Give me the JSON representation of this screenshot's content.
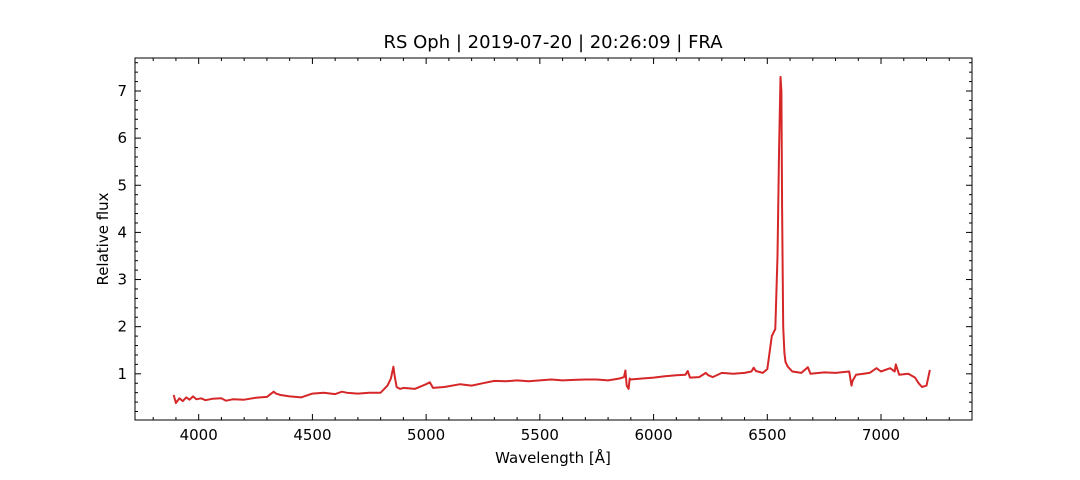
{
  "chart_data": {
    "type": "line",
    "title": "RS Oph | 2019-07-20 | 20:26:09 | FRA",
    "xlabel": "Wavelength [Å]",
    "ylabel": "Relative flux",
    "xlim": [
      3720,
      7400
    ],
    "ylim": [
      0.02,
      7.7
    ],
    "xticks": [
      4000,
      4500,
      5000,
      5500,
      6000,
      6500,
      7000
    ],
    "yticks": [
      1,
      2,
      3,
      4,
      5,
      6,
      7
    ],
    "grid": false,
    "line_color": "#d62728",
    "series": [
      {
        "x": [
          3890,
          3900,
          3915,
          3930,
          3945,
          3960,
          3975,
          3990,
          4010,
          4030,
          4060,
          4100,
          4120,
          4150,
          4200,
          4250,
          4300,
          4330,
          4340,
          4360,
          4400,
          4450,
          4500,
          4550,
          4600,
          4630,
          4650,
          4700,
          4750,
          4800,
          4830,
          4845,
          4856,
          4862,
          4870,
          4885,
          4900,
          4950,
          5000,
          5016,
          5030,
          5080,
          5150,
          5200,
          5250,
          5300,
          5350,
          5400,
          5450,
          5500,
          5550,
          5600,
          5650,
          5700,
          5750,
          5800,
          5850,
          5870,
          5876,
          5882,
          5890,
          5895,
          5900,
          5950,
          6000,
          6050,
          6100,
          6140,
          6150,
          6160,
          6200,
          6230,
          6240,
          6260,
          6300,
          6350,
          6400,
          6430,
          6440,
          6450,
          6480,
          6500,
          6520,
          6535,
          6545,
          6552,
          6558,
          6562,
          6565,
          6570,
          6575,
          6580,
          6590,
          6610,
          6650,
          6678,
          6690,
          6750,
          6800,
          6860,
          6870,
          6875,
          6890,
          6950,
          6980,
          7000,
          7040,
          7060,
          7065,
          7080,
          7120,
          7150,
          7165,
          7180,
          7200,
          7215
        ],
        "y": [
          0.55,
          0.38,
          0.48,
          0.42,
          0.5,
          0.45,
          0.52,
          0.46,
          0.48,
          0.44,
          0.47,
          0.48,
          0.43,
          0.46,
          0.45,
          0.49,
          0.51,
          0.62,
          0.58,
          0.55,
          0.52,
          0.5,
          0.58,
          0.6,
          0.57,
          0.62,
          0.6,
          0.58,
          0.6,
          0.6,
          0.75,
          0.9,
          1.15,
          0.95,
          0.72,
          0.68,
          0.7,
          0.68,
          0.78,
          0.82,
          0.7,
          0.72,
          0.78,
          0.75,
          0.8,
          0.85,
          0.84,
          0.86,
          0.84,
          0.86,
          0.88,
          0.86,
          0.87,
          0.88,
          0.88,
          0.86,
          0.9,
          0.93,
          1.07,
          0.75,
          0.68,
          0.9,
          0.88,
          0.9,
          0.92,
          0.95,
          0.97,
          0.98,
          1.06,
          0.92,
          0.93,
          1.02,
          0.97,
          0.93,
          1.02,
          1.0,
          1.02,
          1.05,
          1.13,
          1.06,
          1.02,
          1.1,
          1.8,
          1.95,
          3.5,
          5.8,
          7.3,
          7.0,
          4.5,
          2.0,
          1.45,
          1.25,
          1.15,
          1.05,
          1.02,
          1.14,
          1.0,
          1.03,
          1.02,
          1.05,
          0.75,
          0.85,
          0.98,
          1.02,
          1.12,
          1.05,
          1.12,
          1.05,
          1.2,
          0.98,
          1.0,
          0.92,
          0.8,
          0.72,
          0.75,
          1.08
        ]
      }
    ]
  }
}
